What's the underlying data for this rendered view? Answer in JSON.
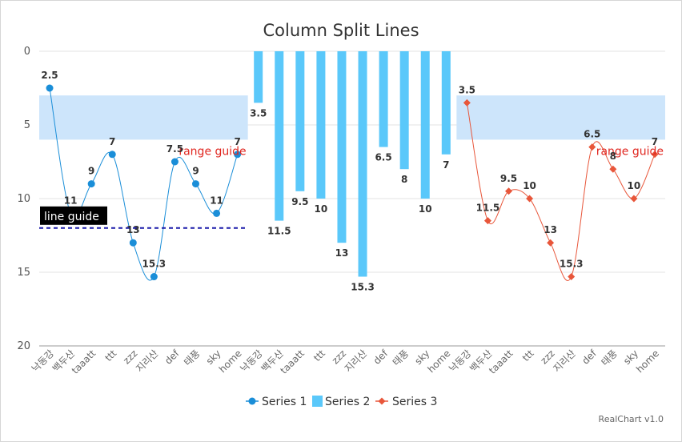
{
  "chart_data": {
    "type": "bar",
    "title": "Column Split Lines",
    "categories": [
      "낙동강",
      "백두산",
      "taaatt",
      "ttt",
      "zzz",
      "지리산",
      "def",
      "태풍",
      "sky",
      "home"
    ],
    "y_axis": {
      "min": 0,
      "max": 20,
      "reversed": true,
      "ticks": [
        0,
        5,
        10,
        15,
        20
      ]
    },
    "series": [
      {
        "name": "Series 1",
        "type": "line",
        "values": [
          2.5,
          11,
          9,
          7,
          13,
          15.3,
          7.5,
          9,
          11,
          7
        ],
        "labels": [
          "2.5",
          "11",
          "9",
          "7",
          "13",
          "15.3",
          "7.5",
          "9",
          "11",
          "7"
        ]
      },
      {
        "name": "Series 2",
        "type": "bar",
        "values": [
          3.5,
          11.5,
          9.5,
          10,
          13,
          15.3,
          6.5,
          8,
          10,
          7
        ],
        "labels": [
          "3.5",
          "11.5",
          "9.5",
          "10",
          "13",
          "15.3",
          "6.5",
          "8",
          "10",
          "7"
        ]
      },
      {
        "name": "Series 3",
        "type": "line",
        "values": [
          3.5,
          11.5,
          9.5,
          10,
          13,
          15.3,
          6.5,
          8,
          10,
          7
        ],
        "labels": [
          "3.5",
          "11.5",
          "9.5",
          "10",
          "13",
          "15.3",
          "6.5",
          "8",
          "10",
          "7"
        ]
      }
    ],
    "range_guide": {
      "label": "range guide",
      "from": 3,
      "to": 6
    },
    "line_guide": {
      "label": "line guide",
      "value": 12
    },
    "legend_position": "bottom",
    "grid": true
  },
  "credit": "RealChart v1.0",
  "colors": {
    "series1": "#1a8ed8",
    "series2": "#5ac8fa",
    "series3": "#e8563a",
    "range_band": "#cde5fb",
    "line_guide": "#1a1aaa",
    "guide_text": "#e0261f"
  }
}
